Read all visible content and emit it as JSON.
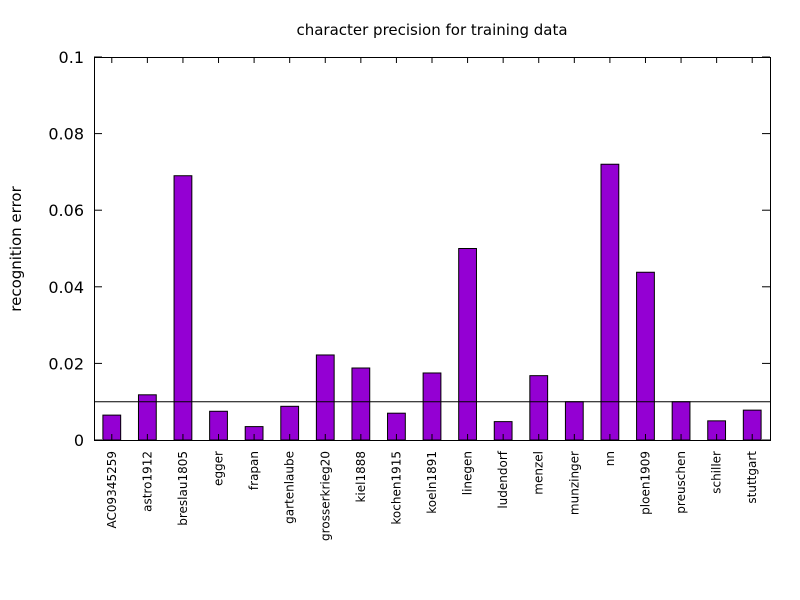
{
  "chart_data": {
    "type": "bar",
    "title": "character precision for training data",
    "xlabel": "",
    "ylabel": "recognition error",
    "ylim": [
      0,
      0.1
    ],
    "yticks": [
      "0",
      "0.02",
      "0.04",
      "0.06",
      "0.08",
      "0.1"
    ],
    "grid": false,
    "legend": "none",
    "categories": [
      "AC09345259",
      "astro1912",
      "breslau1805",
      "egger",
      "frapan",
      "gartenlaube",
      "grosserkrieg20",
      "kiel1888",
      "kochen1915",
      "koeln1891",
      "linegen",
      "ludendorf",
      "menzel",
      "munzinger",
      "nn",
      "ploen1909",
      "preuschen",
      "schiller",
      "stuttgart"
    ],
    "values": [
      0.0065,
      0.0118,
      0.069,
      0.0075,
      0.0035,
      0.0088,
      0.0222,
      0.0188,
      0.007,
      0.0175,
      0.05,
      0.0048,
      0.0168,
      0.01,
      0.072,
      0.0438,
      0.01,
      0.005,
      0.0078
    ],
    "reference_line": 0.01,
    "bar_color": "#9400d3",
    "bar_border_color": "#000000"
  }
}
